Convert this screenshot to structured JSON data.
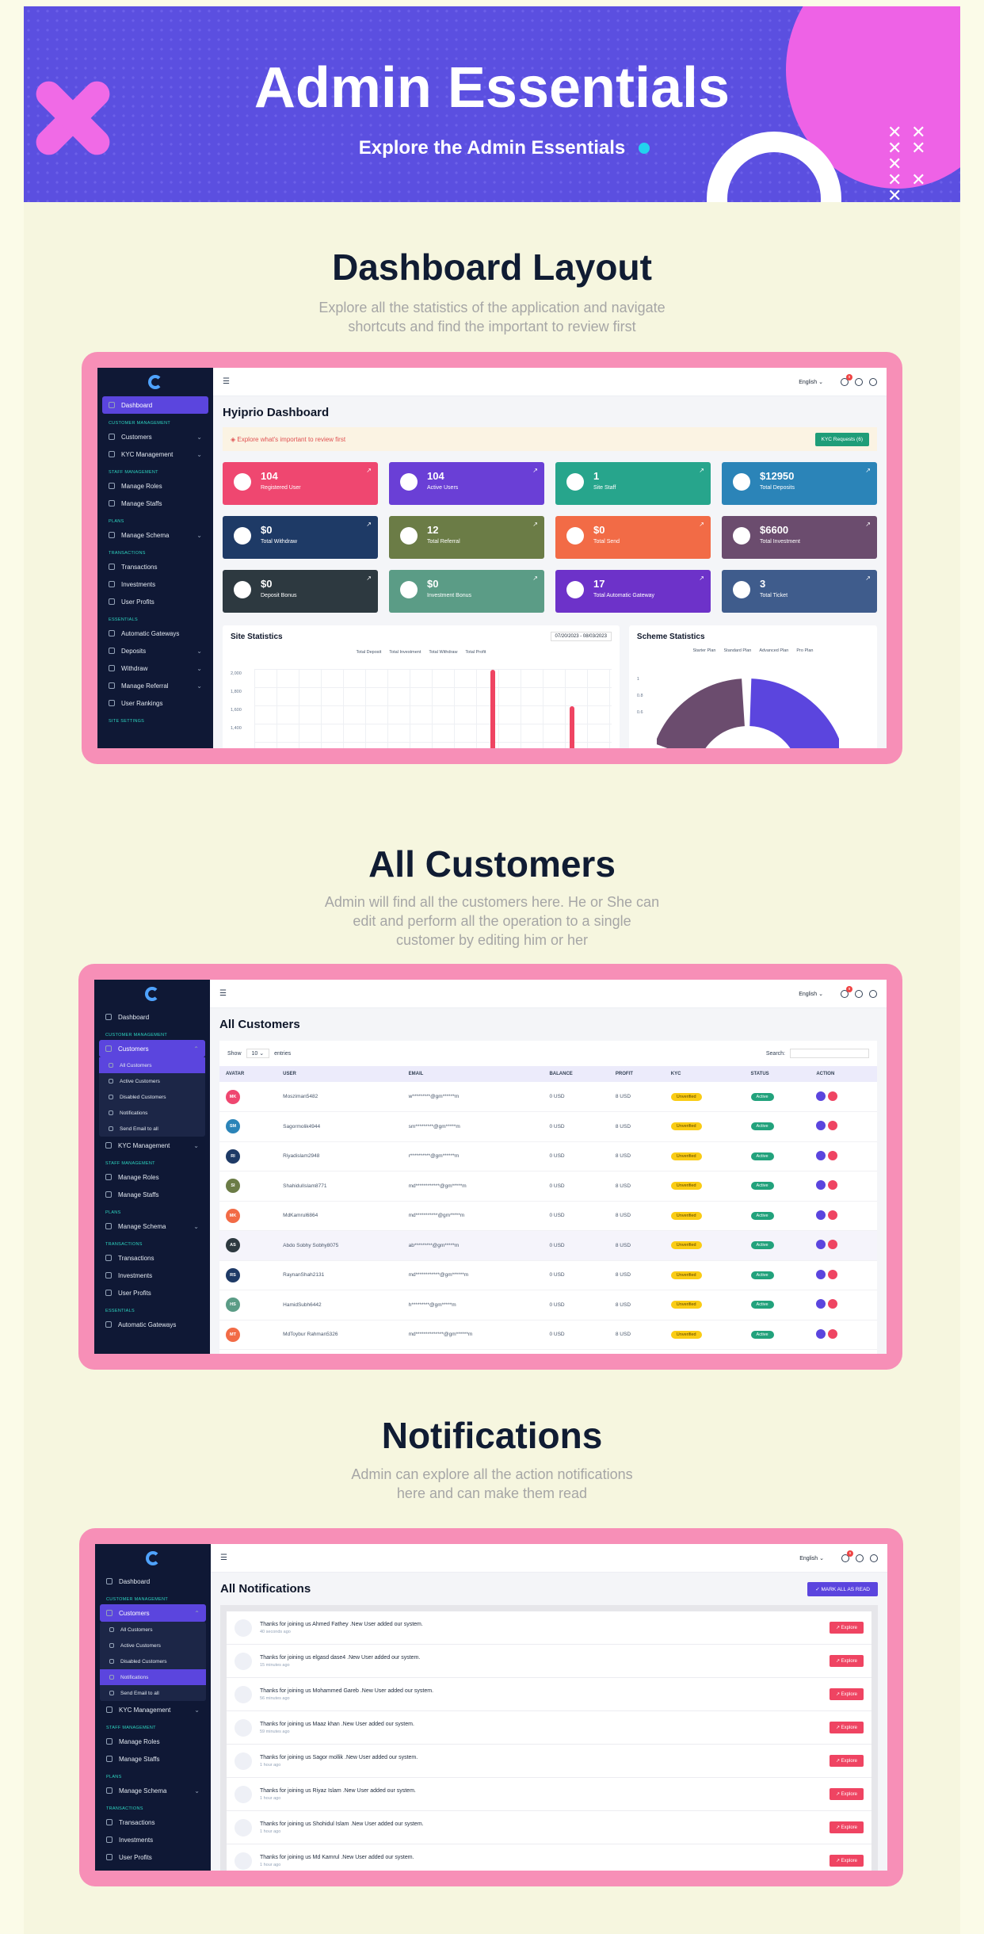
{
  "hero": {
    "title": "Admin Essentials",
    "subtitle": "Explore the Admin Essentials"
  },
  "sections": [
    {
      "title": "Dashboard Layout",
      "subtitle_lines": [
        "Explore all the statistics of the application and navigate",
        "shortcuts and find the important to review first"
      ]
    },
    {
      "title": "All Customers",
      "subtitle_lines": [
        "Admin will find all the customers here. He or She can",
        "edit and perform all the operation to a single",
        "customer by editing him or her"
      ]
    },
    {
      "title": "Notifications",
      "subtitle_lines": [
        "Admin can explore all the action notifications",
        "here and can make them read"
      ]
    }
  ],
  "topbar": {
    "language": "English",
    "notif_count": "9"
  },
  "sidebar": {
    "dashboard": "Dashboard",
    "g_customer": "CUSTOMER MANAGEMENT",
    "customers": "Customers",
    "kyc": "KYC Management",
    "g_staff": "STAFF MANAGEMENT",
    "roles": "Manage Roles",
    "staffs": "Manage Staffs",
    "g_plans": "PLANS",
    "schema": "Manage Schema",
    "g_trans": "TRANSACTIONS",
    "transactions": "Transactions",
    "investments": "Investments",
    "profits": "User Profits",
    "g_ess": "ESSENTIALS",
    "gateways": "Automatic Gateways",
    "deposits": "Deposits",
    "withdraw": "Withdraw",
    "referral": "Manage Referral",
    "rankings": "User Rankings",
    "g_site": "SITE SETTINGS",
    "sub": {
      "all": "All Customers",
      "active": "Active Customers",
      "disabled": "Disabled Customers",
      "notifications": "Notifications",
      "send": "Send Email to all"
    }
  },
  "dashboard": {
    "title": "Hyiprio Dashboard",
    "banner": "Explore what's important to review first",
    "kyc_button": "KYC Requests (6)",
    "cards": [
      {
        "value": "104",
        "label": "Registered User",
        "color": "#ef4770"
      },
      {
        "value": "104",
        "label": "Active Users",
        "color": "#6a3fd6"
      },
      {
        "value": "1",
        "label": "Site Staff",
        "color": "#27a58c"
      },
      {
        "value": "$12950",
        "label": "Total Deposits",
        "color": "#2b84b8"
      },
      {
        "value": "$0",
        "label": "Total Withdraw",
        "color": "#1e3a66"
      },
      {
        "value": "12",
        "label": "Total Referral",
        "color": "#6b7c46"
      },
      {
        "value": "$0",
        "label": "Total Send",
        "color": "#f26b46"
      },
      {
        "value": "$6600",
        "label": "Total Investment",
        "color": "#6b4c6e"
      },
      {
        "value": "$0",
        "label": "Deposit Bonus",
        "color": "#2d3940"
      },
      {
        "value": "$0",
        "label": "Investment Bonus",
        "color": "#5b9c86"
      },
      {
        "value": "17",
        "label": "Total Automatic Gateway",
        "color": "#6d32c9"
      },
      {
        "value": "3",
        "label": "Total Ticket",
        "color": "#3f5c8c"
      }
    ],
    "site_stats": {
      "title": "Site Statistics",
      "range": "07/20/2023 - 08/03/2023",
      "legend": [
        "Total Deposit",
        "Total Investment",
        "Total Withdraw",
        "Total Profit"
      ],
      "ticks": [
        "2,000",
        "1,800",
        "1,600",
        "1,400"
      ]
    },
    "scheme_stats": {
      "title": "Scheme Statistics",
      "legend": [
        "Starter Plan",
        "Standard Plan",
        "Advanced Plan",
        "Pro Plan"
      ],
      "ticks": [
        "1",
        "0.8",
        "0.6"
      ]
    }
  },
  "customers": {
    "title": "All Customers",
    "show": "Show",
    "entries_value": "10",
    "entries": "entries",
    "search": "Search:",
    "headers": [
      "AVATAR",
      "USER",
      "EMAIL",
      "BALANCE",
      "PROFIT",
      "KYC",
      "STATUS",
      "ACTION"
    ],
    "rows": [
      {
        "initials": "MK",
        "color": "#ef4770",
        "user": "Mosziman5482",
        "email": "w*********@gm******m",
        "balance": "0 USD",
        "profit": "8 USD",
        "kyc": "Unverified",
        "status": "Active"
      },
      {
        "initials": "SM",
        "color": "#2b84b8",
        "user": "Sagormolik4944",
        "email": "sm*********@gm*****m",
        "balance": "0 USD",
        "profit": "8 USD",
        "kyc": "Unverified",
        "status": "Active"
      },
      {
        "initials": "RI",
        "color": "#1e3a66",
        "user": "Riyadislam2948",
        "email": "r**********@gm******m",
        "balance": "0 USD",
        "profit": "8 USD",
        "kyc": "Unverified",
        "status": "Active"
      },
      {
        "initials": "SI",
        "color": "#6b7c46",
        "user": "ShahidulIslam8771",
        "email": "md************@gm*****m",
        "balance": "0 USD",
        "profit": "8 USD",
        "kyc": "Unverified",
        "status": "Active"
      },
      {
        "initials": "MK",
        "color": "#f26b46",
        "user": "MdKamrul6864",
        "email": "md***********@gm*****m",
        "balance": "0 USD",
        "profit": "8 USD",
        "kyc": "Unverified",
        "status": "Active"
      },
      {
        "initials": "AS",
        "color": "#2d3940",
        "user": "Abdo Sobhy Sobhy8075",
        "email": "ab*********@gm*****m",
        "balance": "0 USD",
        "profit": "8 USD",
        "kyc": "Unverified",
        "status": "Active"
      },
      {
        "initials": "RS",
        "color": "#1e3a66",
        "user": "RaynanShah2131",
        "email": "md************@gm******m",
        "balance": "0 USD",
        "profit": "8 USD",
        "kyc": "Unverified",
        "status": "Active"
      },
      {
        "initials": "HS",
        "color": "#5b9c86",
        "user": "HamidSubh6442",
        "email": "h*********@gm*****m",
        "balance": "0 USD",
        "profit": "8 USD",
        "kyc": "Unverified",
        "status": "Active"
      },
      {
        "initials": "MT",
        "color": "#f26b46",
        "user": "MdToybur Rahman5326",
        "email": "md**************@gm******m",
        "balance": "0 USD",
        "profit": "8 USD",
        "kyc": "Unverified",
        "status": "Active"
      }
    ]
  },
  "notifications": {
    "title": "All Notifications",
    "mark_all": "MARK ALL AS READ",
    "explore": "Explore",
    "items": [
      {
        "text": "Thanks for joining us Ahmed Fathey .New User added our system.",
        "time": "40 seconds ago"
      },
      {
        "text": "Thanks for joining us elgasd dase4 .New User added our system.",
        "time": "15 minutes ago"
      },
      {
        "text": "Thanks for joining us Mohammed Gareb .New User added our system.",
        "time": "56 minutes ago"
      },
      {
        "text": "Thanks for joining us Maaz khan .New User added our system.",
        "time": "59 minutes ago"
      },
      {
        "text": "Thanks for joining us Sagor mollik .New User added our system.",
        "time": "1 hour ago"
      },
      {
        "text": "Thanks for joining us Riyaz Islam .New User added our system.",
        "time": "1 hour ago"
      },
      {
        "text": "Thanks for joining us Shohidul Islam .New User added our system.",
        "time": "1 hour ago"
      },
      {
        "text": "Thanks for joining us Md Kamrul .New User added our system.",
        "time": "1 hour ago"
      }
    ]
  }
}
